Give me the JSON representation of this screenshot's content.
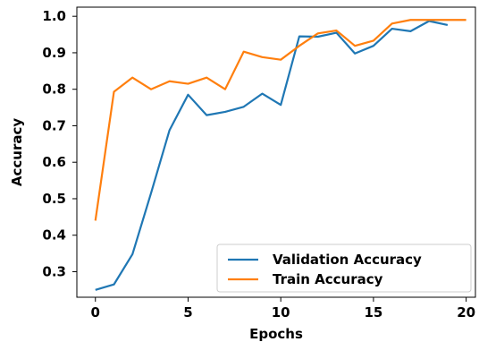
{
  "chart_data": {
    "type": "line",
    "title": "",
    "xlabel": "Epochs",
    "ylabel": "Accuracy",
    "xlim": [
      -1,
      20.5
    ],
    "ylim": [
      0.23,
      1.025
    ],
    "xticks": [
      0,
      5,
      10,
      15,
      20
    ],
    "yticks": [
      0.3,
      0.4,
      0.5,
      0.6,
      0.7,
      0.8,
      0.9,
      1.0
    ],
    "xtick_labels": [
      "0",
      "5",
      "10",
      "15",
      "20"
    ],
    "ytick_labels": [
      "0.3",
      "0.4",
      "0.5",
      "0.6",
      "0.7",
      "0.8",
      "0.9",
      "1.0"
    ],
    "grid": false,
    "legend_position": "lower-right",
    "x": [
      0,
      1,
      2,
      3,
      4,
      5,
      6,
      7,
      8,
      9,
      10,
      11,
      12,
      13,
      14,
      15,
      16,
      17,
      18,
      19,
      20
    ],
    "series": [
      {
        "name": "Validation Accuracy",
        "color": "#1f77b4",
        "values": [
          0.25,
          0.265,
          0.348,
          0.515,
          0.688,
          0.785,
          0.729,
          0.738,
          0.752,
          0.788,
          0.757,
          0.945,
          0.944,
          0.955,
          0.898,
          0.919,
          0.966,
          0.959,
          0.987,
          0.976,
          null
        ]
      },
      {
        "name": "Train Accuracy",
        "color": "#ff7f0e",
        "values": [
          0.44,
          0.793,
          0.832,
          0.8,
          0.822,
          0.815,
          0.832,
          0.8,
          0.903,
          0.888,
          0.881,
          0.919,
          0.953,
          0.961,
          0.919,
          0.933,
          0.98,
          0.99,
          0.99,
          0.99,
          0.99
        ]
      }
    ]
  }
}
